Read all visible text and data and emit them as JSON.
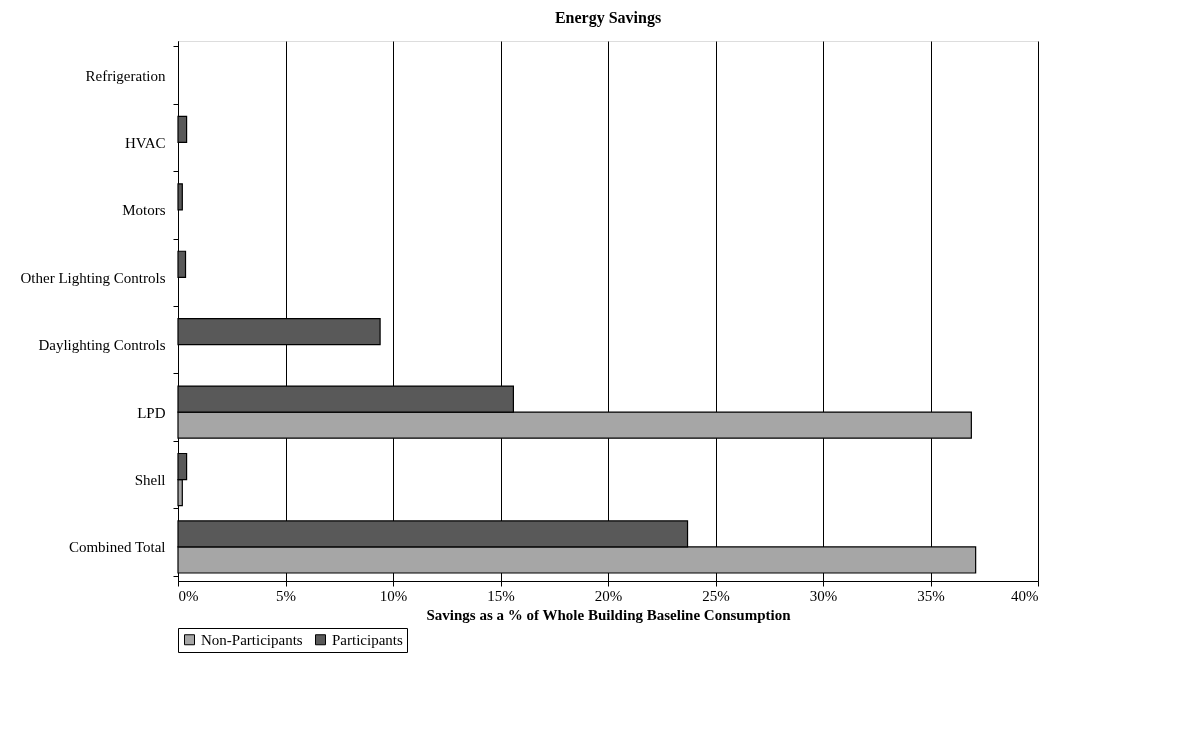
{
  "chart_data": {
    "type": "bar",
    "orientation": "horizontal",
    "title": "Energy Savings",
    "xlabel": "Savings as a % of Whole Building Baseline Consumption",
    "categories": [
      "Refrigeration",
      "HVAC",
      "Motors",
      "Other Lighting Controls",
      "Daylighting Controls",
      "LPD",
      "Shell",
      "Combined Total"
    ],
    "series": [
      {
        "name": "Non-Participants",
        "color": "#a6a6a6",
        "values": [
          null,
          null,
          null,
          null,
          null,
          36.9,
          0.2,
          37.1
        ]
      },
      {
        "name": "Participants",
        "color": "#595959",
        "values": [
          null,
          0.4,
          0.2,
          0.35,
          9.4,
          15.6,
          0.4,
          23.7
        ]
      }
    ],
    "xlim": [
      0,
      40
    ],
    "xticks": [
      {
        "value": 0,
        "label": "0%"
      },
      {
        "value": 5,
        "label": "5%"
      },
      {
        "value": 10,
        "label": "10%"
      },
      {
        "value": 15,
        "label": "15%"
      },
      {
        "value": 20,
        "label": "20%"
      },
      {
        "value": 25,
        "label": "25%"
      },
      {
        "value": 30,
        "label": "30%"
      },
      {
        "value": 35,
        "label": "35%"
      },
      {
        "value": 40,
        "label": "40%"
      }
    ],
    "grid": "x",
    "legend": "bottom"
  }
}
